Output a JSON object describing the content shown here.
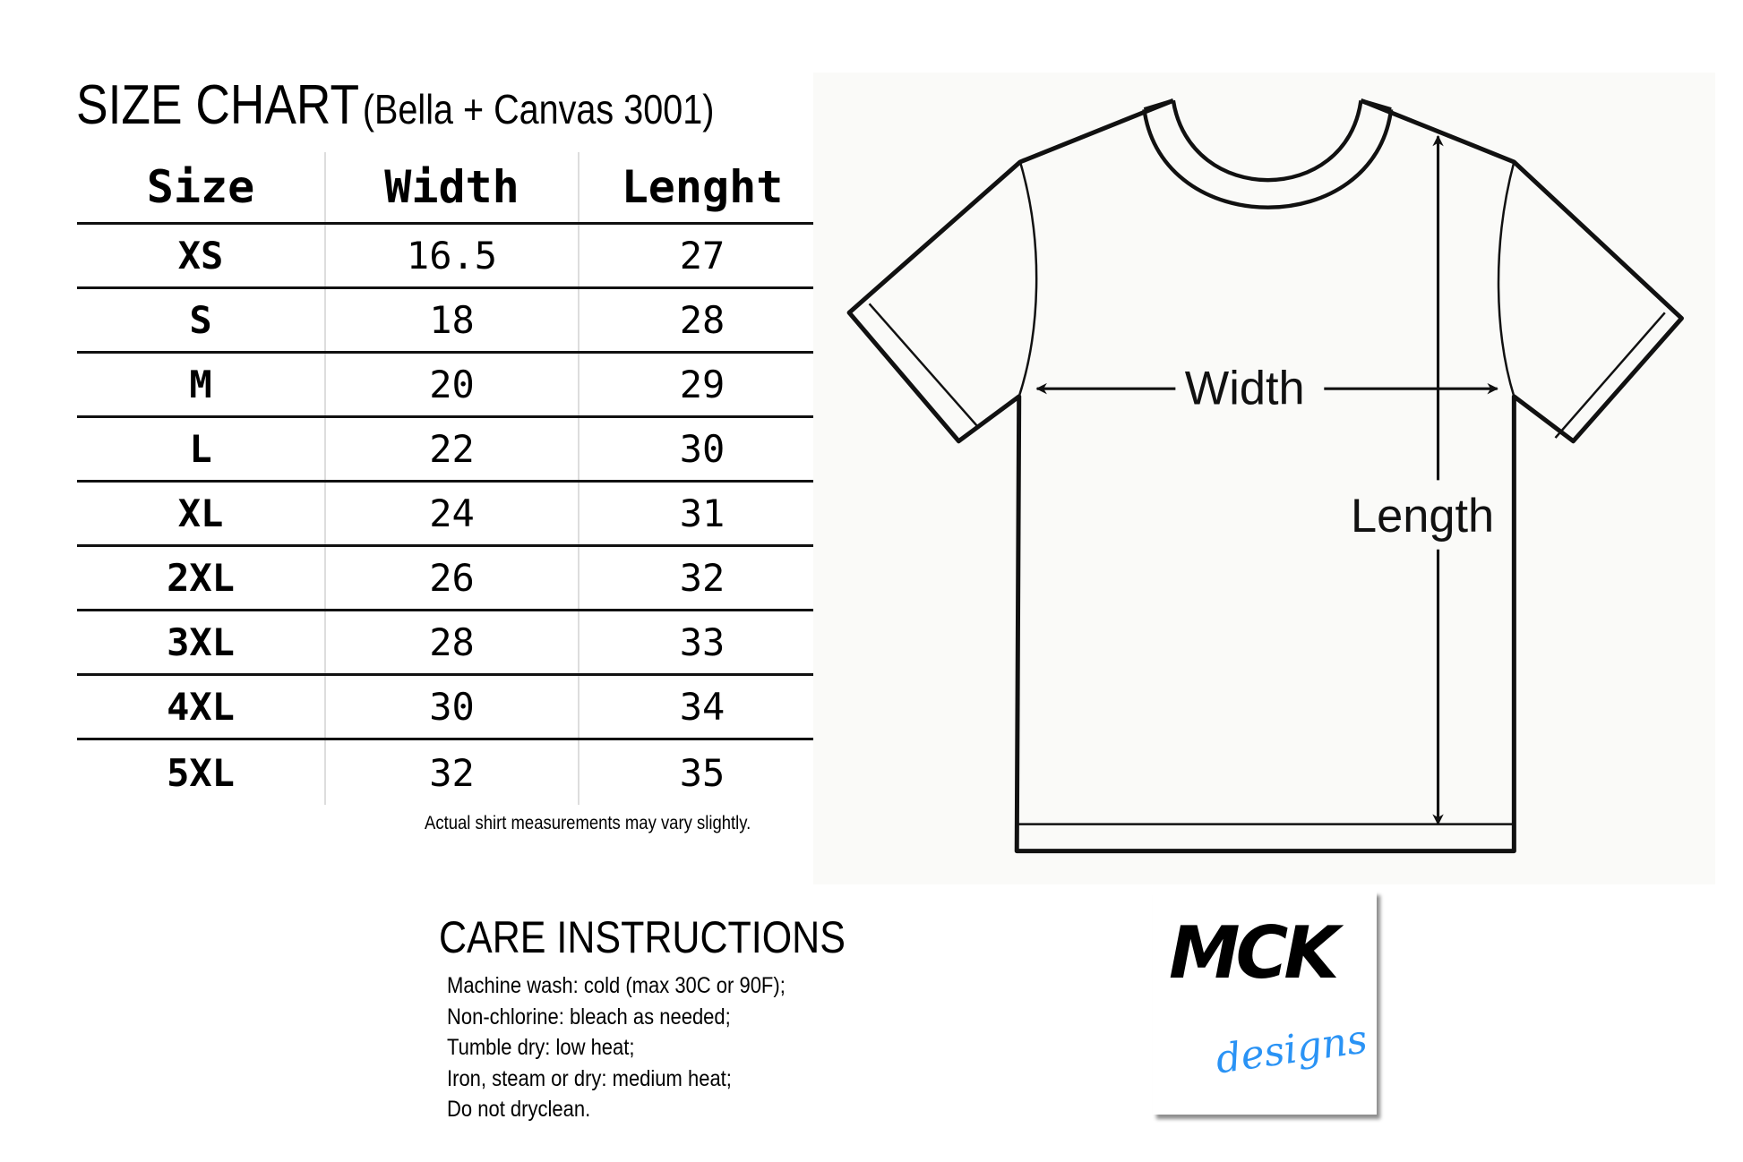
{
  "header": {
    "title": "SIZE CHART",
    "subtitle": "(Bella + Canvas 3001)"
  },
  "table": {
    "columns": [
      "Size",
      "Width",
      "Lenght"
    ],
    "rows": [
      {
        "size": "XS",
        "width": "16.5",
        "length": "27"
      },
      {
        "size": "S",
        "width": "18",
        "length": "28"
      },
      {
        "size": "M",
        "width": "20",
        "length": "29"
      },
      {
        "size": "L",
        "width": "22",
        "length": "30"
      },
      {
        "size": "XL",
        "width": "24",
        "length": "31"
      },
      {
        "size": "2XL",
        "width": "26",
        "length": "32"
      },
      {
        "size": "3XL",
        "width": "28",
        "length": "33"
      },
      {
        "size": "4XL",
        "width": "30",
        "length": "34"
      },
      {
        "size": "5XL",
        "width": "32",
        "length": "35"
      }
    ],
    "note": "Actual shirt measurements may vary slightly."
  },
  "diagram": {
    "width_label": "Width",
    "length_label": "Length"
  },
  "care": {
    "title": "CARE INSTRUCTIONS",
    "lines": [
      "Machine wash: cold (max 30C or 90F);",
      "Non-chlorine: bleach as needed;",
      "Tumble dry: low heat;",
      "Iron, steam or dry: medium heat;",
      "Do not dryclean."
    ]
  },
  "logo": {
    "primary": "MCK",
    "secondary": "designs",
    "accent_color": "#2a93f5"
  }
}
